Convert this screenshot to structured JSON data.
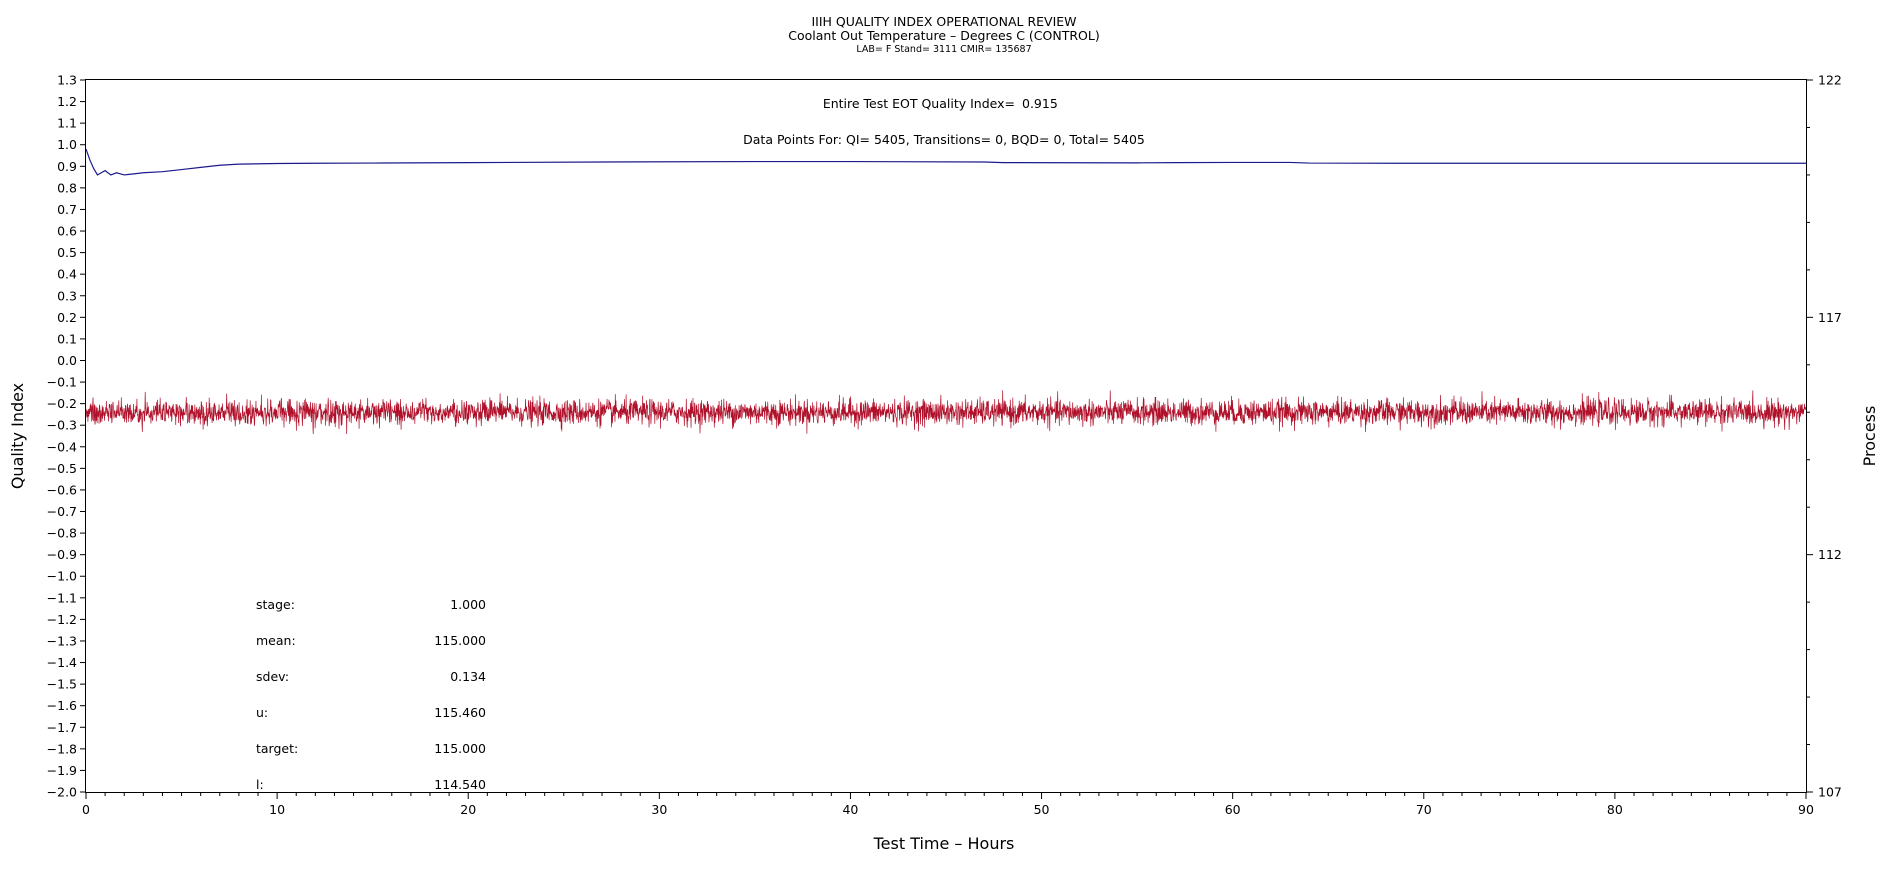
{
  "chart_data": {
    "type": "line",
    "title": "IIIH QUALITY INDEX OPERATIONAL REVIEW",
    "subtitle": "Coolant Out Temperature – Degrees C (CONTROL)",
    "subtitle2": "LAB= F Stand= 3111 CMIR= 135687",
    "xlabel": "Test Time – Hours",
    "ylabel_left": "Quality Index",
    "ylabel_right": "Process",
    "xlim": [
      0,
      90
    ],
    "ylim_left": [
      -2.0,
      1.3
    ],
    "ylim_right": [
      107,
      122
    ],
    "x_ticks": [
      0,
      10,
      20,
      30,
      40,
      50,
      60,
      70,
      80,
      90
    ],
    "y_left_ticks": [
      1.3,
      1.2,
      1.1,
      1.0,
      0.9,
      0.8,
      0.7,
      0.6,
      0.5,
      0.4,
      0.3,
      0.2,
      0.1,
      0.0,
      -0.1,
      -0.2,
      -0.3,
      -0.4,
      -0.5,
      -0.6,
      -0.7,
      -0.8,
      -0.9,
      -1.0,
      -1.1,
      -1.2,
      -1.3,
      -1.4,
      -1.5,
      -1.6,
      -1.7,
      -1.8,
      -1.9,
      -2.0
    ],
    "y_left_tick_labels": [
      "1.3",
      "1.2",
      "1.1",
      "1.0",
      "0.9",
      "0.8",
      "0.7",
      "0.6",
      "0.5",
      "0.4",
      "0.3",
      "0.2",
      "0.1",
      "0.0",
      "−0.1",
      "−0.2",
      "−0.3",
      "−0.4",
      "−0.5",
      "−0.6",
      "−0.7",
      "−0.8",
      "−0.9",
      "−1.0",
      "−1.1",
      "−1.2",
      "−1.3",
      "−1.4",
      "−1.5",
      "−1.6",
      "−1.7",
      "−1.8",
      "−1.9",
      "−2.0"
    ],
    "y_right_ticks": [
      122,
      117,
      112,
      107
    ],
    "annotations": {
      "eot_label": "Entire Test EOT Quality Index=",
      "eot_value": "0.915",
      "points_line": "Data Points For: QI=  5405, Transitions=     0, BQD=     0, Total=  5405"
    },
    "stats": [
      {
        "label": "stage:",
        "value": "1.000"
      },
      {
        "label": "mean:",
        "value": "115.000"
      },
      {
        "label": "sdev:",
        "value": "0.134"
      },
      {
        "label": "u:",
        "value": "115.460"
      },
      {
        "label": "target:",
        "value": "115.000"
      },
      {
        "label": "l:",
        "value": "114.540"
      }
    ],
    "series": [
      {
        "axis": "left",
        "color": "#1a1a8c",
        "x": [
          0,
          0.2,
          0.4,
          0.6,
          0.8,
          1.0,
          1.3,
          1.6,
          2.0,
          2.5,
          3.0,
          4.0,
          5.0,
          6.0,
          7.0,
          8.0,
          10,
          12,
          15,
          20,
          27,
          35,
          40,
          47,
          48,
          55,
          57,
          60,
          63,
          64,
          70,
          80,
          90
        ],
        "y": [
          0.98,
          0.93,
          0.89,
          0.86,
          0.87,
          0.88,
          0.86,
          0.87,
          0.86,
          0.865,
          0.87,
          0.875,
          0.885,
          0.895,
          0.905,
          0.91,
          0.913,
          0.914,
          0.915,
          0.917,
          0.92,
          0.922,
          0.922,
          0.92,
          0.917,
          0.916,
          0.917,
          0.918,
          0.918,
          0.915,
          0.914,
          0.914,
          0.914
        ]
      },
      {
        "axis": "right",
        "color": "#b0102a",
        "center": 115.0,
        "sdev": 0.134,
        "x_range": [
          0,
          90
        ],
        "n_points": 5405
      }
    ]
  }
}
